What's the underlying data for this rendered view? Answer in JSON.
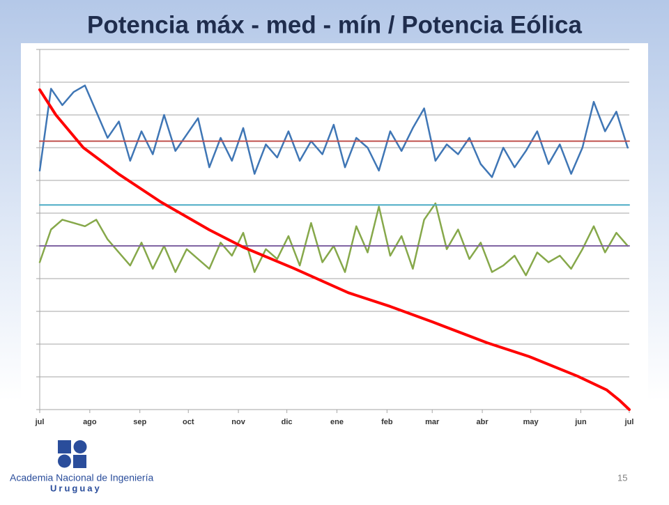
{
  "chart_data": {
    "type": "line",
    "title": "Potencia máx - med - mín  / Potencia Eólica",
    "xlim": [
      0,
      365
    ],
    "xticks": [
      {
        "value": 0,
        "label": "jul"
      },
      {
        "value": 31,
        "label": "ago"
      },
      {
        "value": 62,
        "label": "sep"
      },
      {
        "value": 92,
        "label": "oct"
      },
      {
        "value": 123,
        "label": "nov"
      },
      {
        "value": 153,
        "label": "dic"
      },
      {
        "value": 184,
        "label": "ene"
      },
      {
        "value": 215,
        "label": "feb"
      },
      {
        "value": 243,
        "label": "mar"
      },
      {
        "value": 274,
        "label": "abr"
      },
      {
        "value": 304,
        "label": "may"
      },
      {
        "value": 335,
        "label": "jun"
      },
      {
        "value": 365,
        "label": "jul"
      }
    ],
    "ylim": [
      0,
      11
    ],
    "yticks": [
      0,
      1,
      2,
      3,
      4,
      5,
      6,
      7,
      8,
      9,
      10,
      11
    ],
    "grid": true,
    "series": [
      {
        "color": "#3f76b5",
        "width": 2.5,
        "x": [
          0,
          7,
          14,
          21,
          28,
          35,
          42,
          49,
          56,
          63,
          70,
          77,
          84,
          91,
          98,
          105,
          112,
          119,
          126,
          133,
          140,
          147,
          154,
          161,
          168,
          175,
          182,
          189,
          196,
          203,
          210,
          217,
          224,
          231,
          238,
          245,
          252,
          259,
          266,
          273,
          280,
          287,
          294,
          301,
          308,
          315,
          322,
          329,
          336,
          343,
          350,
          357,
          364
        ],
        "values": [
          7.3,
          9.8,
          9.3,
          9.7,
          9.9,
          9.1,
          8.3,
          8.8,
          7.6,
          8.5,
          7.8,
          9.0,
          7.9,
          8.4,
          8.9,
          7.4,
          8.3,
          7.6,
          8.6,
          7.2,
          8.1,
          7.7,
          8.5,
          7.6,
          8.2,
          7.8,
          8.7,
          7.4,
          8.3,
          8.0,
          7.3,
          8.5,
          7.9,
          8.6,
          9.2,
          7.6,
          8.1,
          7.8,
          8.3,
          7.5,
          7.1,
          8.0,
          7.4,
          7.9,
          8.5,
          7.5,
          8.1,
          7.2,
          8.0,
          9.4,
          8.5,
          9.1,
          8.0
        ]
      },
      {
        "color": "#86a84a",
        "width": 2.5,
        "x": [
          0,
          7,
          14,
          21,
          28,
          35,
          42,
          49,
          56,
          63,
          70,
          77,
          84,
          91,
          98,
          105,
          112,
          119,
          126,
          133,
          140,
          147,
          154,
          161,
          168,
          175,
          182,
          189,
          196,
          203,
          210,
          217,
          224,
          231,
          238,
          245,
          252,
          259,
          266,
          273,
          280,
          287,
          294,
          301,
          308,
          315,
          322,
          329,
          336,
          343,
          350,
          357,
          364
        ],
        "values": [
          4.5,
          5.5,
          5.8,
          5.7,
          5.6,
          5.8,
          5.2,
          4.8,
          4.4,
          5.1,
          4.3,
          5.0,
          4.2,
          4.9,
          4.6,
          4.3,
          5.1,
          4.7,
          5.4,
          4.2,
          4.9,
          4.6,
          5.3,
          4.4,
          5.7,
          4.5,
          5.0,
          4.2,
          5.6,
          4.8,
          6.2,
          4.7,
          5.3,
          4.3,
          5.8,
          6.3,
          4.9,
          5.5,
          4.6,
          5.1,
          4.2,
          4.4,
          4.7,
          4.1,
          4.8,
          4.5,
          4.7,
          4.3,
          4.9,
          5.6,
          4.8,
          5.4,
          5.0
        ]
      },
      {
        "color": "#c0504d",
        "width": 2,
        "x": [
          0,
          365
        ],
        "values": [
          8.2,
          8.2
        ]
      },
      {
        "color": "#4bacc6",
        "width": 2,
        "x": [
          0,
          365
        ],
        "values": [
          6.25,
          6.25
        ]
      },
      {
        "color": "#8064a2",
        "width": 2,
        "x": [
          0,
          365
        ],
        "values": [
          5.0,
          5.0
        ]
      },
      {
        "color": "#ff0000",
        "width": 4,
        "x": [
          0,
          10,
          27,
          49,
          75,
          105,
          126,
          157,
          191,
          217,
          243,
          277,
          303,
          333,
          351,
          359,
          365
        ],
        "values": [
          9.77,
          9.0,
          8.0,
          7.19,
          6.34,
          5.49,
          4.96,
          4.32,
          3.57,
          3.15,
          2.68,
          2.04,
          1.62,
          1.02,
          0.6,
          0.28,
          0
        ]
      }
    ]
  },
  "footer": {
    "organization": "Academia Nacional de Ingeniería",
    "country": "Uruguay",
    "page": "15"
  }
}
